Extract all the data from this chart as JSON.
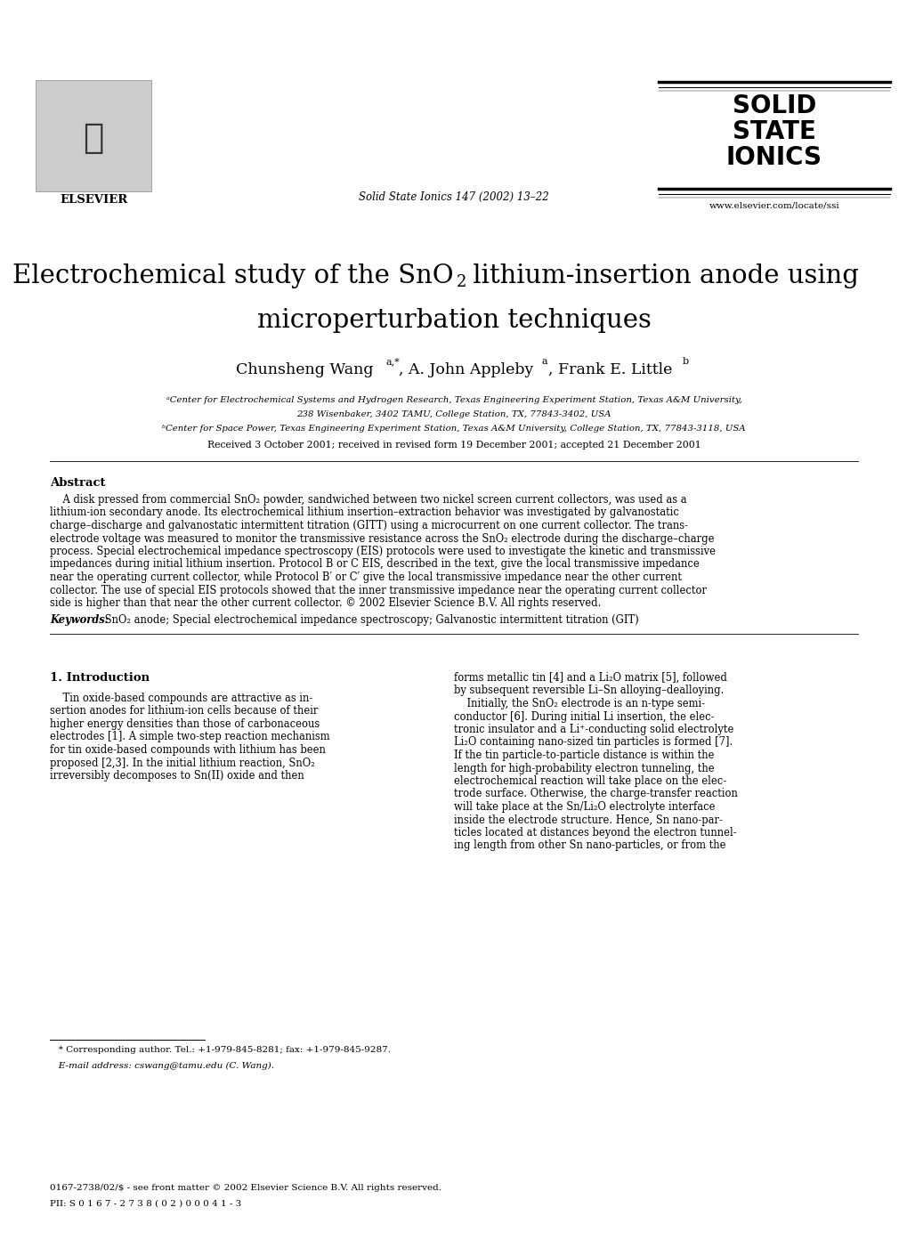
{
  "bg_color": "#ffffff",
  "page_width": 10.2,
  "page_height": 13.93,
  "journal_line": "Solid State Ionics 147 (2002) 13–22",
  "journal_url": "www.elsevier.com/locate/ssi",
  "elsevier_text": "ELSEVIER",
  "affil_a": "ᵃCenter for Electrochemical Systems and Hydrogen Research, Texas Engineering Experiment Station, Texas A&M University,",
  "affil_a2": "238 Wisenbaker, 3402 TAMU, College Station, TX, 77843-3402, USA",
  "affil_b": "ᵇCenter for Space Power, Texas Engineering Experiment Station, Texas A&M University, College Station, TX, 77843-3118, USA",
  "received": "Received 3 October 2001; received in revised form 19 December 2001; accepted 21 December 2001",
  "abstract_title": "Abstract",
  "keywords_label": "Keywords:",
  "keywords_text": " SnO₂ anode; Special electrochemical impedance spectroscopy; Galvanostic intermittent titration (GIT)",
  "section1_title": "1. Introduction",
  "footnote_star": "   * Corresponding author. Tel.: +1-979-845-8281; fax: +1-979-845-9287.",
  "footnote_email": "   E-mail address: cswang@tamu.edu (C. Wang).",
  "copyright_line1": "0167-2738/02/$ - see front matter © 2002 Elsevier Science B.V. All rights reserved.",
  "copyright_line2": "PII: S 0 1 6 7 - 2 7 3 8 ( 0 2 ) 0 0 0 4 1 - 3"
}
